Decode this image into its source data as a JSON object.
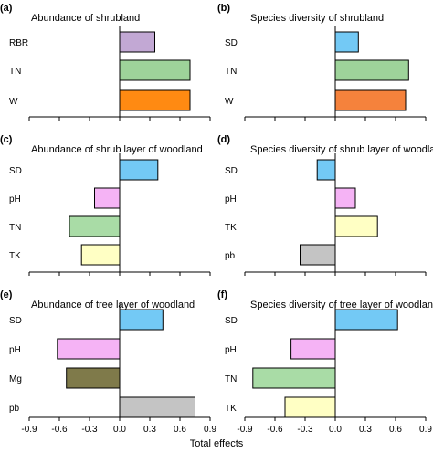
{
  "chart_data": [
    {
      "type": "bar",
      "orientation": "horizontal",
      "panel": "(a)",
      "title": "Abundance of shrubland",
      "categories": [
        "RBR",
        "TN",
        "W"
      ],
      "values": [
        0.35,
        0.7,
        0.7
      ],
      "colors": [
        "#c2a8d4",
        "#9ed39a",
        "#ff8a12"
      ],
      "xlim": [
        -0.9,
        0.9
      ]
    },
    {
      "type": "bar",
      "orientation": "horizontal",
      "panel": "(b)",
      "title": "Species diversity of shrubland",
      "categories": [
        "SD",
        "TN",
        "W"
      ],
      "values": [
        0.23,
        0.73,
        0.7
      ],
      "colors": [
        "#73c9f5",
        "#9ed39a",
        "#f5823c"
      ],
      "xlim": [
        -0.9,
        0.9
      ]
    },
    {
      "type": "bar",
      "orientation": "horizontal",
      "panel": "(c)",
      "title": "Abundance of shrub layer of woodland",
      "categories": [
        "SD",
        "pH",
        "TN",
        "TK"
      ],
      "values": [
        0.38,
        -0.25,
        -0.5,
        -0.38
      ],
      "colors": [
        "#73c9f5",
        "#f5b3f5",
        "#a9dca6",
        "#ffffc4"
      ],
      "xlim": [
        -0.9,
        0.9
      ]
    },
    {
      "type": "bar",
      "orientation": "horizontal",
      "panel": "(d)",
      "title": "Species diversity of shrub layer of woodland",
      "categories": [
        "SD",
        "pH",
        "TK",
        "pb"
      ],
      "values": [
        -0.18,
        0.2,
        0.42,
        -0.35
      ],
      "colors": [
        "#73c9f5",
        "#f5b3f5",
        "#ffffc4",
        "#c4c4c4"
      ],
      "xlim": [
        -0.9,
        0.9
      ]
    },
    {
      "type": "bar",
      "orientation": "horizontal",
      "panel": "(e)",
      "title": "Abundance of tree layer of woodland",
      "categories": [
        "SD",
        "pH",
        "Mg",
        "pb"
      ],
      "values": [
        0.43,
        -0.62,
        -0.53,
        0.75
      ],
      "colors": [
        "#73c9f5",
        "#f5b3f5",
        "#7f7a4a",
        "#c4c4c4"
      ],
      "xlim": [
        -0.9,
        0.9
      ]
    },
    {
      "type": "bar",
      "orientation": "horizontal",
      "panel": "(f)",
      "title": "Species diversity of tree layer of woodland",
      "categories": [
        "SD",
        "pH",
        "TN",
        "TK"
      ],
      "values": [
        0.62,
        -0.44,
        -0.82,
        -0.5
      ],
      "colors": [
        "#73c9f5",
        "#f5b3f5",
        "#a9dca6",
        "#ffffc4"
      ],
      "xlim": [
        -0.9,
        0.9
      ]
    }
  ],
  "x_ticks": [
    "-0.9",
    "-0.6",
    "-0.3",
    "0.0",
    "0.3",
    "0.6",
    "0.9"
  ],
  "x_ticks_right": [
    "-0.9",
    "-0.6",
    "-0.3",
    "0.0",
    "0.3",
    "0.6",
    "0.9"
  ],
  "xlabel": "Total effects"
}
